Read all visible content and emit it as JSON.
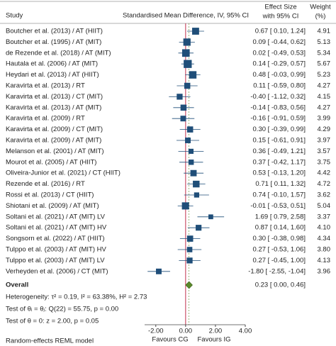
{
  "chart_data": {
    "type": "forest",
    "header": {
      "study": "Study",
      "plot": "Standardised Mean Difference, IV, 95% CI",
      "effect": [
        "Effect Size",
        "with 95% CI"
      ],
      "weight": [
        "Weight",
        "(%)"
      ]
    },
    "studies": [
      "Boutcher et al. (2013) / AT (HIIT)",
      "Boutcher et al. (1995) / AT (MIT)",
      "de Rezende et al. (2018) / AT (MIT)",
      "Hautala et al. (2006) / AT (MIT)",
      "Heydari et al. (2013) / AT (HIIT)",
      "Karavirta et al. (2013) / RT",
      "Karavirta et al. (2013) / CT (MIT)",
      "Karavirta et al. (2013) / AT (MIT)",
      "Karavirta et al. (2009) / RT",
      "Karavirta et al. (2009) / CT (MIT)",
      "Karavirta et al. (2009) / AT (MIT)",
      "Melanson et al. (2001) / AT (MIT)",
      "Mourot et al. (2005) / AT (HIIT)",
      "Oliveira-Junior et al. (2021) / CT (HIIT)",
      "Rezende et al. (2016) / RT",
      "Rossi et al. (2013) / CT (HIIT)",
      "Shiotani et al. (2009) / AT (MIT)",
      "Soltani et al. (2021) / AT (MIT) LV",
      "Soltani et al. (2021) / AT (MIT) HV",
      "Songsorn et al. (2022) / AT (HIIT)",
      "Tulppo et al. (2003) / AT (MIT) HV",
      "Tulppo et al. (2003) / AT (MIT) LV",
      "Verheyden et al. (2006) / CT (MIT)"
    ],
    "values": [
      0.67,
      0.09,
      0.02,
      0.14,
      0.48,
      0.11,
      -0.4,
      -0.14,
      -0.16,
      0.3,
      0.15,
      0.36,
      0.37,
      0.53,
      0.71,
      0.74,
      -0.01,
      1.69,
      0.87,
      0.3,
      0.27,
      0.27,
      -1.8
    ],
    "ci_low": [
      0.1,
      -0.44,
      -0.49,
      -0.29,
      -0.03,
      -0.59,
      -1.12,
      -0.83,
      -0.91,
      -0.39,
      -0.61,
      -0.49,
      -0.42,
      -0.13,
      0.11,
      -0.1,
      -0.53,
      0.79,
      0.14,
      -0.38,
      -0.53,
      -0.45,
      -2.55
    ],
    "ci_high": [
      1.24,
      0.62,
      0.53,
      0.57,
      0.99,
      0.8,
      0.32,
      0.56,
      0.59,
      0.99,
      0.91,
      1.21,
      1.17,
      1.2,
      1.32,
      1.57,
      0.51,
      2.58,
      1.6,
      0.98,
      1.06,
      1.0,
      -1.04
    ],
    "value_labels": [
      "0.67 [ 0.10, 1.24]",
      "0.09 [ -0.44, 0.62]",
      "0.02 [ -0.49, 0.53]",
      "0.14 [ -0.29, 0.57]",
      "0.48 [ -0.03, 0.99]",
      "0.11 [ -0.59, 0.80]",
      "-0.40 [ -1.12, 0.32]",
      "-0.14 [ -0.83, 0.56]",
      "-0.16 [ -0.91, 0.59]",
      "0.30 [ -0.39, 0.99]",
      "0.15 [ -0.61, 0.91]",
      "0.36 [ -0.49, 1.21]",
      "0.37 [ -0.42, 1.17]",
      "0.53 [ -0.13, 1.20]",
      "0.71 [ 0.11, 1.32]",
      "0.74 [ -0.10, 1.57]",
      "-0.01 [ -0.53, 0.51]",
      "1.69 [ 0.79, 2.58]",
      "0.87 [ 0.14, 1.60]",
      "0.30 [ -0.38, 0.98]",
      "0.27 [ -0.53, 1.06]",
      "0.27 [ -0.45, 1.00]",
      "-1.80 [ -2.55, -1.04]"
    ],
    "weights": [
      4.91,
      5.13,
      5.34,
      5.67,
      5.23,
      4.27,
      4.15,
      4.27,
      3.99,
      4.29,
      3.97,
      3.57,
      3.75,
      4.42,
      4.72,
      3.62,
      5.04,
      3.37,
      4.1,
      4.34,
      3.8,
      4.13,
      3.96
    ],
    "weight_labels": [
      "4.91",
      "5.13",
      "5.34",
      "5.67",
      "5.23",
      "4.27",
      "4.15",
      "4.27",
      "3.99",
      "4.29",
      "3.97",
      "3.57",
      "3.75",
      "4.42",
      "4.72",
      "3.62",
      "5.04",
      "3.37",
      "4.10",
      "4.34",
      "3.80",
      "4.13",
      "3.96"
    ],
    "overall": {
      "name": "Overall",
      "value": 0.23,
      "ci_low": 0.0,
      "ci_high": 0.46,
      "value_label": "0.23 [ 0.00, 0.46]"
    },
    "notes": [
      "Heterogeneity: τ² = 0.19, I² = 63.38%, H² = 2.73",
      "Test of θᵢ = θⱼ: Q(22) = 55.75, p = 0.00",
      "Test of θ = 0: z = 2.00, p = 0.05"
    ],
    "xlim": [
      -2.75,
      4.0
    ],
    "xticks": [
      {
        "value": -2,
        "label": "-2.00"
      },
      {
        "value": 0,
        "label": "0.00"
      },
      {
        "value": 2,
        "label": "2.00"
      },
      {
        "value": 4,
        "label": "4.00"
      }
    ],
    "favours": [
      "Favours CG",
      "Favours IG"
    ],
    "model": "Random-effects REML model",
    "marker_color": "#1f4e79",
    "diamond_color": "#5a8a2a",
    "null_line_color": "#c0304a"
  }
}
